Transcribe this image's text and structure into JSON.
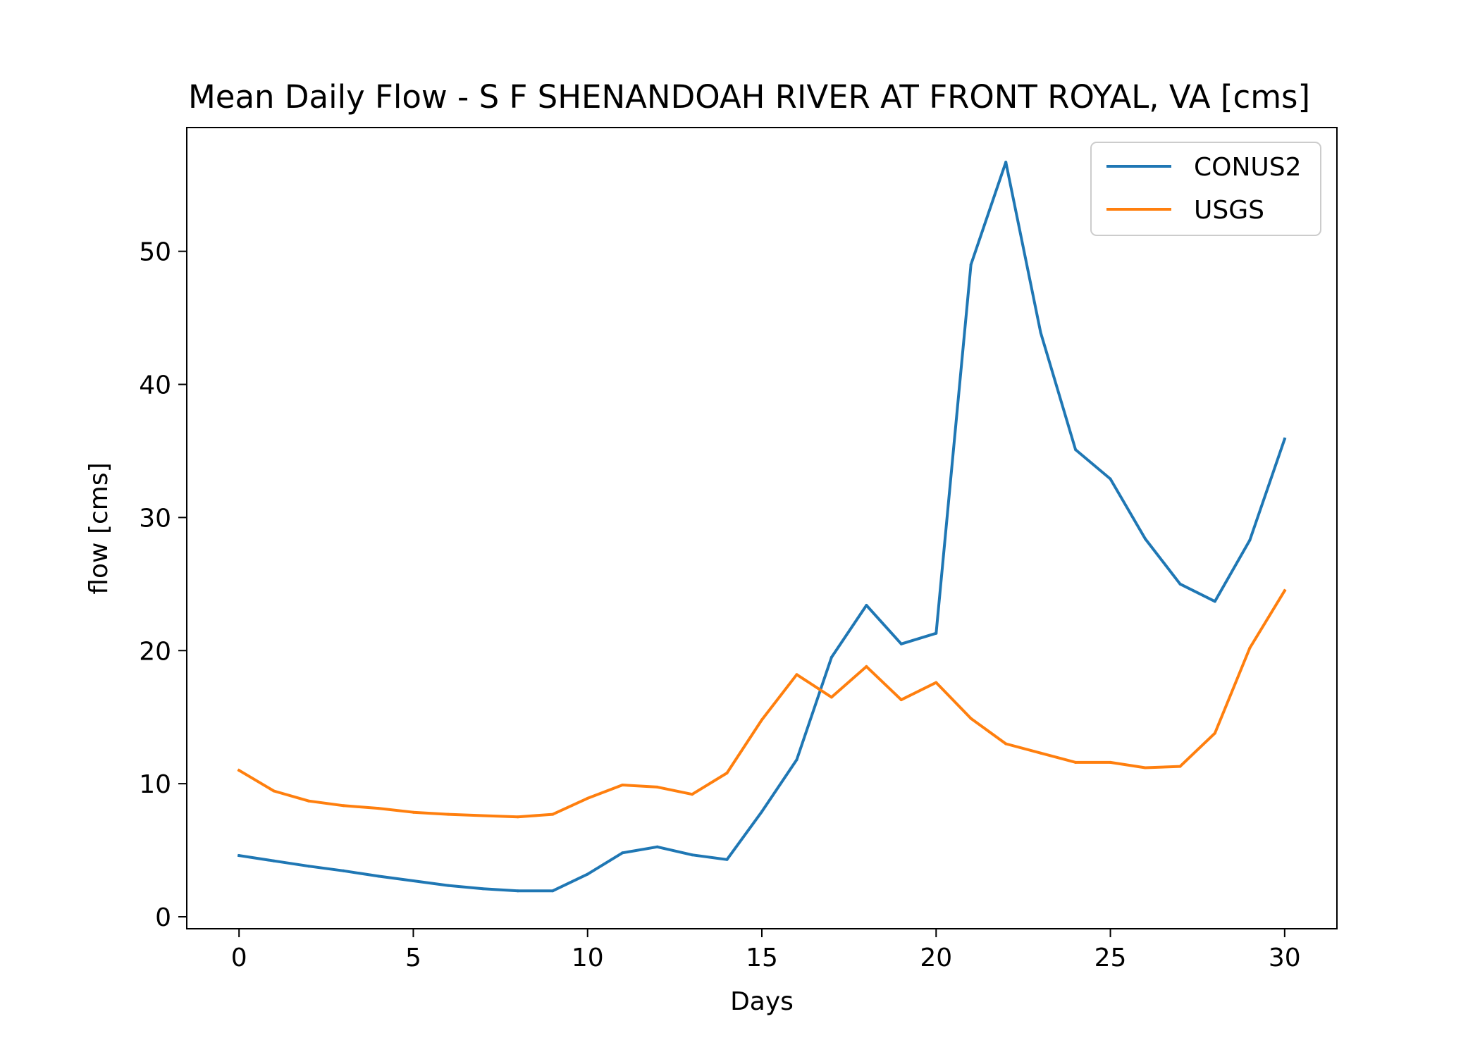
{
  "chart_data": {
    "type": "line",
    "title": "Mean Daily Flow - S F SHENANDOAH RIVER AT FRONT ROYAL, VA [cms]",
    "xlabel": "Days",
    "ylabel": "flow [cms]",
    "xlim": [
      -1.5,
      31.5
    ],
    "ylim": [
      -0.9,
      59.3
    ],
    "xticks": [
      0,
      5,
      10,
      15,
      20,
      25,
      30
    ],
    "yticks": [
      0,
      10,
      20,
      30,
      40,
      50
    ],
    "grid": false,
    "legend_position": "top-right",
    "x": [
      0,
      1,
      2,
      3,
      4,
      5,
      6,
      7,
      8,
      9,
      10,
      11,
      12,
      13,
      14,
      15,
      16,
      17,
      18,
      19,
      20,
      21,
      22,
      23,
      24,
      25,
      26,
      27,
      28,
      29,
      30
    ],
    "series": [
      {
        "name": "CONUS2",
        "color": "#1f77b4",
        "values": [
          4.6,
          4.2,
          3.8,
          3.45,
          3.05,
          2.7,
          2.35,
          2.1,
          1.95,
          1.95,
          3.2,
          4.8,
          5.25,
          4.65,
          4.3,
          7.9,
          11.8,
          19.5,
          23.4,
          20.5,
          21.3,
          49.0,
          56.7,
          43.9,
          35.1,
          32.9,
          28.4,
          25.0,
          23.7,
          28.3,
          35.9
        ]
      },
      {
        "name": "USGS",
        "color": "#ff7f0e",
        "values": [
          11.0,
          9.45,
          8.7,
          8.35,
          8.15,
          7.85,
          7.7,
          7.6,
          7.5,
          7.7,
          8.9,
          9.9,
          9.75,
          9.2,
          10.8,
          14.8,
          18.2,
          16.5,
          18.8,
          16.3,
          17.6,
          14.9,
          13.0,
          12.3,
          11.6,
          11.6,
          11.2,
          11.3,
          13.8,
          20.2,
          24.5
        ]
      }
    ]
  }
}
